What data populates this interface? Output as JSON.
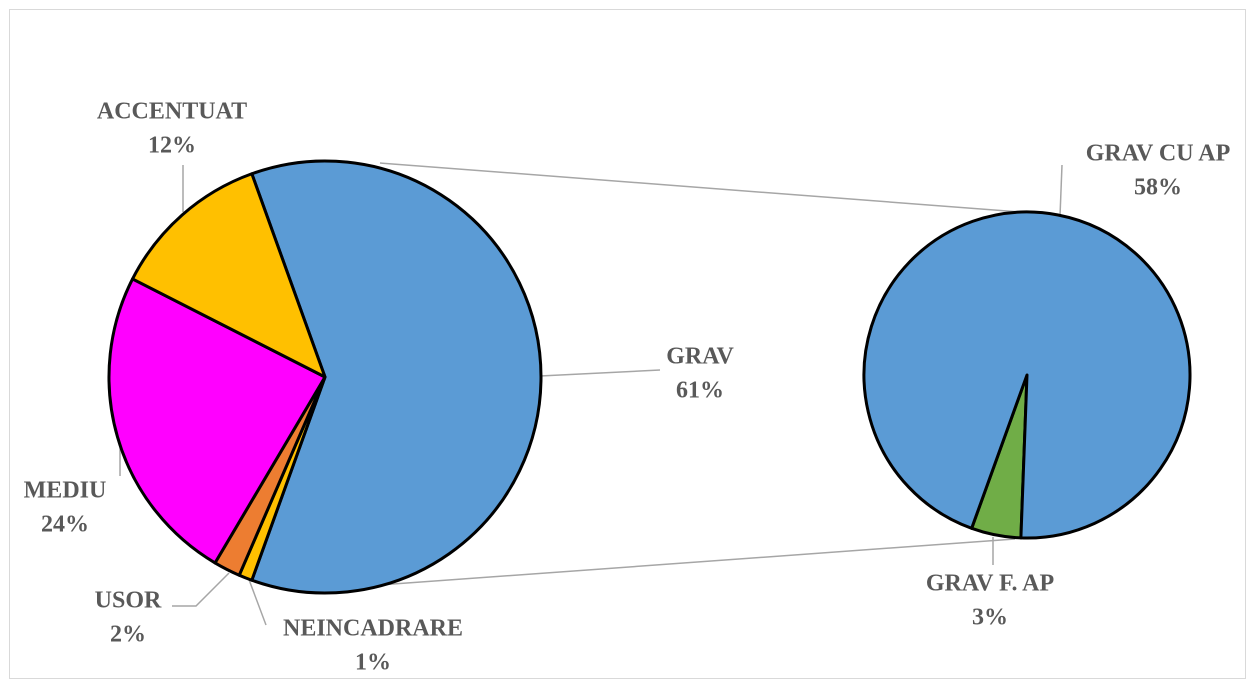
{
  "chart_data": [
    {
      "type": "pie",
      "categories": [
        "GRAV",
        "NEINCADRARE",
        "USOR",
        "MEDIU",
        "ACCENTUAT"
      ],
      "values": [
        61,
        1,
        2,
        24,
        12
      ],
      "value_labels": [
        "61%",
        "1%",
        "2%",
        "24%",
        "12%"
      ],
      "colors": [
        "#5b9bd5",
        "#ffc000",
        "#ed7d31",
        "#ff00ff",
        "#ffc000"
      ]
    },
    {
      "type": "pie",
      "categories": [
        "GRAV CU AP",
        "GRAV F. AP"
      ],
      "values": [
        58,
        3
      ],
      "value_labels": [
        "58%",
        "3%"
      ],
      "colors": [
        "#5b9bd5",
        "#70ad47"
      ]
    }
  ]
}
